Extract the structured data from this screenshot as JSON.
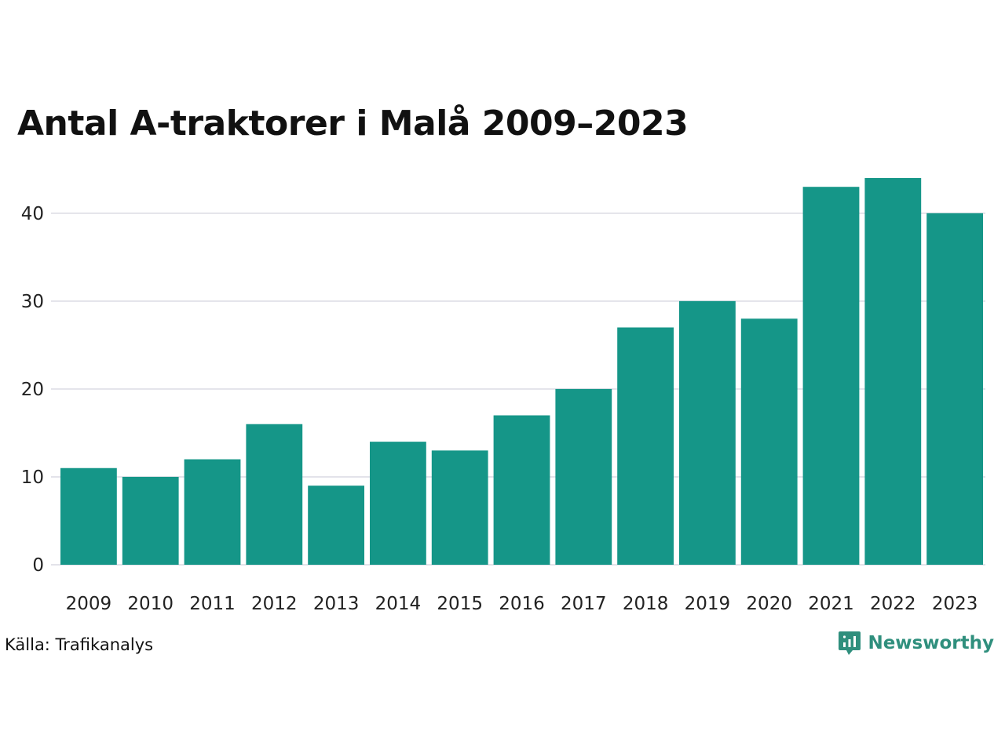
{
  "chart_data": {
    "type": "bar",
    "title": "Antal A-traktorer i Malå 2009–2023",
    "categories": [
      "2009",
      "2010",
      "2011",
      "2012",
      "2013",
      "2014",
      "2015",
      "2016",
      "2017",
      "2018",
      "2019",
      "2020",
      "2021",
      "2022",
      "2023"
    ],
    "values": [
      11,
      10,
      12,
      16,
      9,
      14,
      13,
      17,
      20,
      27,
      30,
      28,
      43,
      44,
      40
    ],
    "y_ticks": [
      0,
      10,
      20,
      30,
      40
    ],
    "ylim": [
      0,
      44
    ],
    "xlabel": "",
    "ylabel": "",
    "grid": true,
    "bar_color": "#159688",
    "grid_color": "#e3e3ea"
  },
  "source": "Källa: Trafikanalys",
  "brand": {
    "name": "Newsworthy",
    "color": "#2f8f7d",
    "icon": "newsworthy-logo-icon"
  }
}
